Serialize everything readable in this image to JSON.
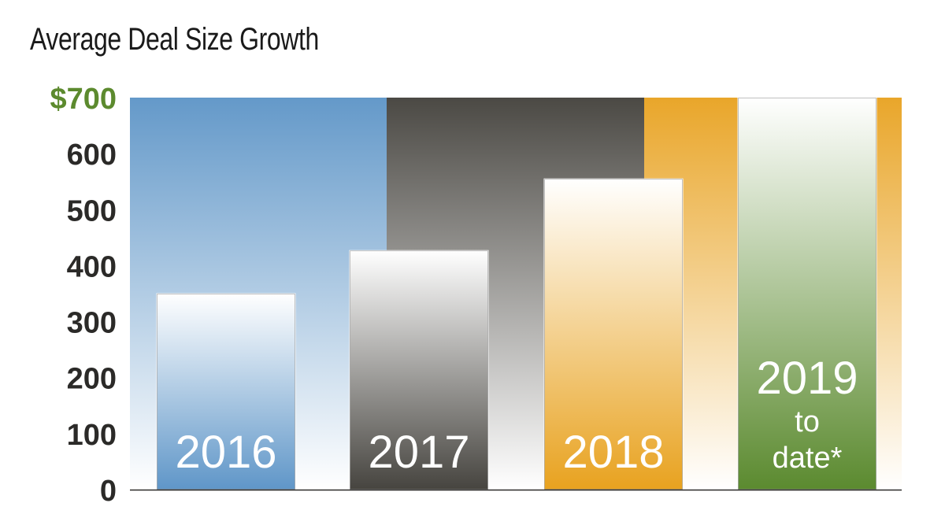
{
  "title": "Average Deal Size Growth",
  "chart_data": {
    "type": "bar",
    "title": "Average Deal Size Growth",
    "xlabel": "",
    "ylabel": "",
    "ylim": [
      0,
      700
    ],
    "y_ticks": [
      "0",
      "100",
      "200",
      "300",
      "400",
      "500",
      "600",
      "$700"
    ],
    "grid": false,
    "legend": "none",
    "categories": [
      "2016",
      "2017",
      "2018",
      "2019 to date*"
    ],
    "category_label_lines": [
      [
        "2016"
      ],
      [
        "2017"
      ],
      [
        "2018"
      ],
      [
        "2019",
        "to",
        "date*"
      ]
    ],
    "values": [
      350,
      427,
      555,
      700
    ],
    "colors": {
      "2016": "#6499c9",
      "2017": "#4b4944",
      "2018": "#e9a62a",
      "2019 to date*": "#5b8a2f",
      "top_tick": "#5c8a2e",
      "tick": "#2b2a28"
    }
  }
}
